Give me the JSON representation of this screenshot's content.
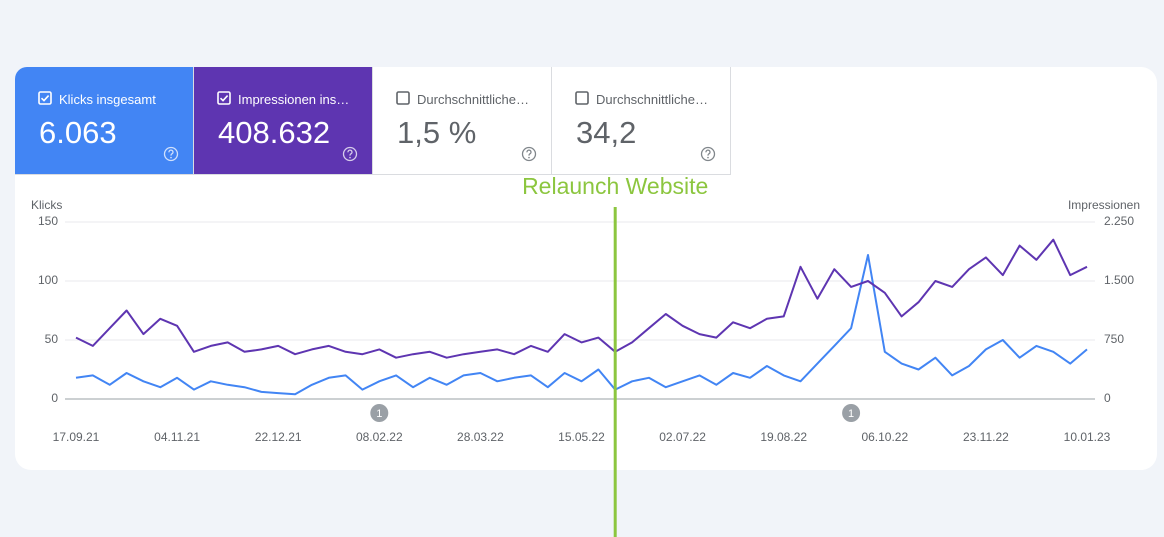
{
  "cards": [
    {
      "label": "Klicks insgesamt",
      "value": "6.063",
      "checked": true,
      "color": "#4285f4"
    },
    {
      "label": "Impressionen ins…",
      "value": "408.632",
      "checked": true,
      "color": "#5e35b1"
    },
    {
      "label": "Durchschnittliche…",
      "value": "1,5 %",
      "checked": false,
      "color": "#ffffff"
    },
    {
      "label": "Durchschnittliche…",
      "value": "34,2",
      "checked": false,
      "color": "#ffffff"
    }
  ],
  "chart_data": {
    "type": "line",
    "ylabel": "Klicks",
    "y2label": "Impressionen",
    "grid": true,
    "x": [
      "17.09.21",
      "25.09.21",
      "03.10.21",
      "11.10.21",
      "19.10.21",
      "27.10.21",
      "04.11.21",
      "12.11.21",
      "20.11.21",
      "28.11.21",
      "06.12.21",
      "14.12.21",
      "22.12.21",
      "30.12.21",
      "07.01.22",
      "15.01.22",
      "23.01.22",
      "31.01.22",
      "08.02.22",
      "16.02.22",
      "24.02.22",
      "04.03.22",
      "12.03.22",
      "20.03.22",
      "28.03.22",
      "05.04.22",
      "13.04.22",
      "21.04.22",
      "29.04.22",
      "07.05.22",
      "15.05.22",
      "23.05.22",
      "31.05.22",
      "08.06.22",
      "16.06.22",
      "24.06.22",
      "02.07.22",
      "10.07.22",
      "18.07.22",
      "26.07.22",
      "03.08.22",
      "11.08.22",
      "19.08.22",
      "27.08.22",
      "04.09.22",
      "12.09.22",
      "20.09.22",
      "28.09.22",
      "06.10.22",
      "14.10.22",
      "22.10.22",
      "30.10.22",
      "07.11.22",
      "15.11.22",
      "23.11.22",
      "01.12.22",
      "09.12.22",
      "17.12.22",
      "25.12.22",
      "02.01.23",
      "10.01.23"
    ],
    "xticks": [
      "17.09.21",
      "04.11.21",
      "22.12.21",
      "08.02.22",
      "28.03.22",
      "15.05.22",
      "02.07.22",
      "19.08.22",
      "06.10.22",
      "23.11.22",
      "10.01.23"
    ],
    "ylim": [
      0,
      150
    ],
    "yticks": [
      0,
      50,
      100,
      150
    ],
    "y2lim": [
      0,
      2250
    ],
    "y2ticks": [
      0,
      750,
      {
        "value": 1500,
        "label": "1.500"
      },
      {
        "value": 2250,
        "label": "2.250"
      }
    ],
    "series": [
      {
        "name": "Klicks",
        "color": "#4285f4",
        "values": [
          18,
          20,
          12,
          22,
          15,
          10,
          18,
          8,
          15,
          12,
          10,
          6,
          5,
          4,
          12,
          18,
          20,
          8,
          15,
          20,
          10,
          18,
          12,
          20,
          22,
          15,
          18,
          20,
          10,
          22,
          15,
          25,
          8,
          15,
          18,
          10,
          15,
          20,
          12,
          22,
          18,
          28,
          20,
          15,
          30,
          45,
          60,
          122,
          40,
          30,
          25,
          35,
          20,
          28,
          42,
          50,
          35,
          45,
          40,
          30,
          42
        ]
      },
      {
        "name": "Impressionen",
        "color": "#5e35b1",
        "axis": "y2",
        "values": [
          780,
          675,
          900,
          1125,
          825,
          1020,
          930,
          600,
          675,
          720,
          600,
          630,
          675,
          570,
          630,
          675,
          600,
          570,
          630,
          525,
          570,
          600,
          525,
          570,
          600,
          630,
          570,
          675,
          600,
          825,
          720,
          780,
          600,
          720,
          900,
          1080,
          930,
          825,
          780,
          975,
          900,
          1020,
          1050,
          1680,
          1275,
          1650,
          1425,
          1500,
          1350,
          1050,
          1230,
          1500,
          1425,
          1650,
          1800,
          1575,
          1950,
          1770,
          2025,
          1575,
          1680
        ]
      }
    ],
    "markers": [
      {
        "label": "1",
        "x": "08.02.22"
      },
      {
        "label": "1",
        "x": "20.09.22"
      }
    ],
    "annotation": {
      "text": "Relaunch Website",
      "x": "31.05.22",
      "color": "#8cc63f"
    }
  }
}
